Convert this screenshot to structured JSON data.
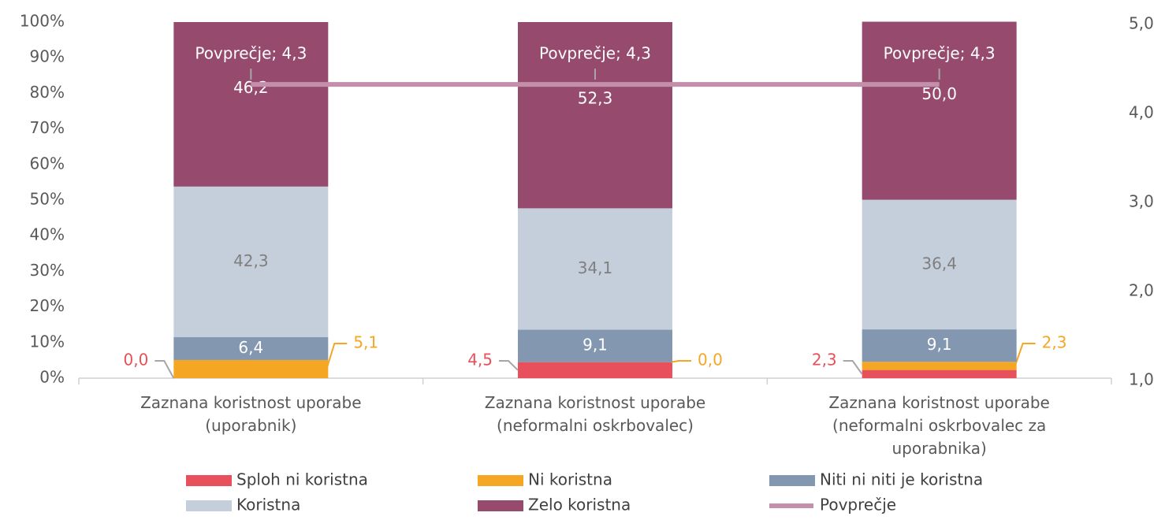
{
  "chart_data": {
    "type": "bar",
    "stacked": true,
    "categories": [
      "Zaznana koristnost uporabe (uporabnik)",
      "Zaznana koristnost uporabe (neformalni oskrbovalec)",
      "Zaznana koristnost uporabe (neformalni oskrbovalec za uporabnika)"
    ],
    "series": [
      {
        "name": "Sploh ni koristna",
        "color": "#e8505b",
        "values": [
          0.0,
          4.5,
          2.3
        ],
        "value_labels": [
          "0,0",
          "4,5",
          "2,3"
        ]
      },
      {
        "name": "Ni koristna",
        "color": "#f5a623",
        "values": [
          5.1,
          0.0,
          2.3
        ],
        "value_labels": [
          "5,1",
          "0,0",
          "2,3"
        ]
      },
      {
        "name": "Niti ni niti je koristna",
        "color": "#8497b0",
        "values": [
          6.4,
          9.1,
          9.1
        ],
        "value_labels": [
          "6,4",
          "9,1",
          "9,1"
        ]
      },
      {
        "name": "Koristna",
        "color": "#c5cfdb",
        "values": [
          42.3,
          34.1,
          36.4
        ],
        "value_labels": [
          "42,3",
          "34,1",
          "36,4"
        ]
      },
      {
        "name": "Zelo koristna",
        "color": "#964b6e",
        "values": [
          46.2,
          52.3,
          50.0
        ],
        "value_labels": [
          "46,2",
          "52,3",
          "50,0"
        ]
      },
      {
        "name": "Povprečje",
        "color": "#c48fab",
        "type": "line",
        "axis": "y2",
        "values": [
          4.3,
          4.3,
          4.3
        ],
        "value_labels": [
          "Povprečje; 4,3",
          "Povprečje; 4,3",
          "Povprečje; 4,3"
        ]
      }
    ],
    "ylim": [
      0,
      100
    ],
    "yticks": [
      {
        "value": 0,
        "label": "0%"
      },
      {
        "value": 10,
        "label": "10%"
      },
      {
        "value": 20,
        "label": "20%"
      },
      {
        "value": 30,
        "label": "30%"
      },
      {
        "value": 40,
        "label": "40%"
      },
      {
        "value": 50,
        "label": "50%"
      },
      {
        "value": 60,
        "label": "60%"
      },
      {
        "value": 70,
        "label": "70%"
      },
      {
        "value": 80,
        "label": "80%"
      },
      {
        "value": 90,
        "label": "90%"
      },
      {
        "value": 100,
        "label": "100%"
      }
    ],
    "y2lim": [
      1,
      5
    ],
    "y2ticks": [
      {
        "value": 1,
        "label": "1,0"
      },
      {
        "value": 2,
        "label": "2,0"
      },
      {
        "value": 3,
        "label": "3,0"
      },
      {
        "value": 4,
        "label": "4,0"
      },
      {
        "value": 5,
        "label": "5,0"
      }
    ],
    "legend": "bottom"
  }
}
